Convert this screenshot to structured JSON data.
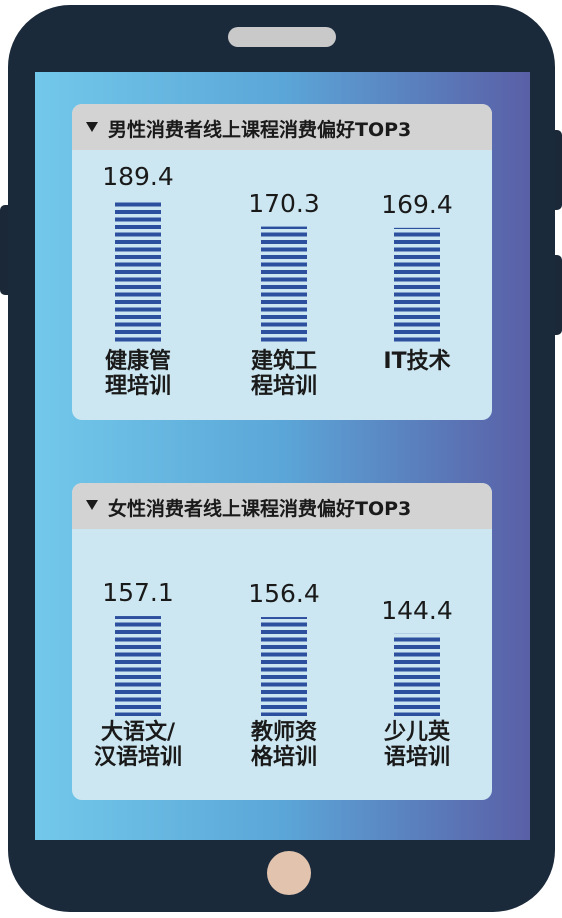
{
  "chart_data": [
    {
      "type": "bar",
      "title": "男性消费者线上课程消费偏好TOP3",
      "categories": [
        "健康管\n理培训",
        "建筑工\n程培训",
        "IT技术"
      ],
      "values": [
        189.4,
        170.3,
        169.4
      ],
      "color": "#2c4f9e"
    },
    {
      "type": "bar",
      "title": "女性消费者线上课程消费偏好TOP3",
      "categories": [
        "大语文/\n汉语培训",
        "教师资\n格培训",
        "少儿英\n语培训"
      ],
      "values": [
        157.1,
        156.4,
        144.4
      ],
      "color": "#2c4f9e"
    }
  ]
}
